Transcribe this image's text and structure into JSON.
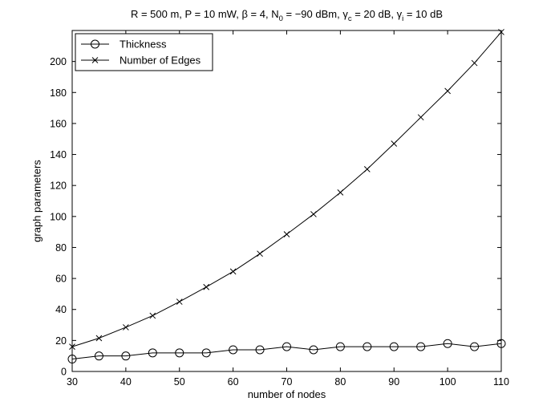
{
  "chart_data": {
    "type": "line",
    "title": {
      "parts": [
        {
          "t": "R = 500 m, P = 10 mW, β = 4, N"
        },
        {
          "t": "0",
          "sub": true
        },
        {
          "t": " = −90 dBm, γ"
        },
        {
          "t": "c",
          "sub": true
        },
        {
          "t": " = 20 dB, γ"
        },
        {
          "t": "i",
          "sub": true
        },
        {
          "t": " = 10 dB"
        }
      ]
    },
    "xlabel": "number of nodes",
    "ylabel": "graph parameters",
    "xlim": [
      30,
      110
    ],
    "ylim": [
      0,
      220
    ],
    "xticks": [
      30,
      40,
      50,
      60,
      70,
      80,
      90,
      100,
      110
    ],
    "yticks": [
      0,
      20,
      40,
      60,
      80,
      100,
      120,
      140,
      160,
      180,
      200
    ],
    "grid": false,
    "legend_position": "top-left",
    "x": [
      30,
      35,
      40,
      45,
      50,
      55,
      60,
      65,
      70,
      75,
      80,
      85,
      90,
      95,
      100,
      105,
      110
    ],
    "series": [
      {
        "name": "Thickness",
        "marker": "circle",
        "values": [
          8,
          10,
          10,
          12,
          12,
          12,
          14,
          14,
          16,
          14,
          16,
          16,
          16,
          16,
          18,
          16,
          18
        ]
      },
      {
        "name": "Number of Edges",
        "marker": "x",
        "values": [
          16,
          21.5,
          28.5,
          36,
          45,
          54.5,
          64.5,
          76,
          88.5,
          101.5,
          115.5,
          130.5,
          147,
          164,
          181,
          199,
          219
        ]
      }
    ]
  }
}
